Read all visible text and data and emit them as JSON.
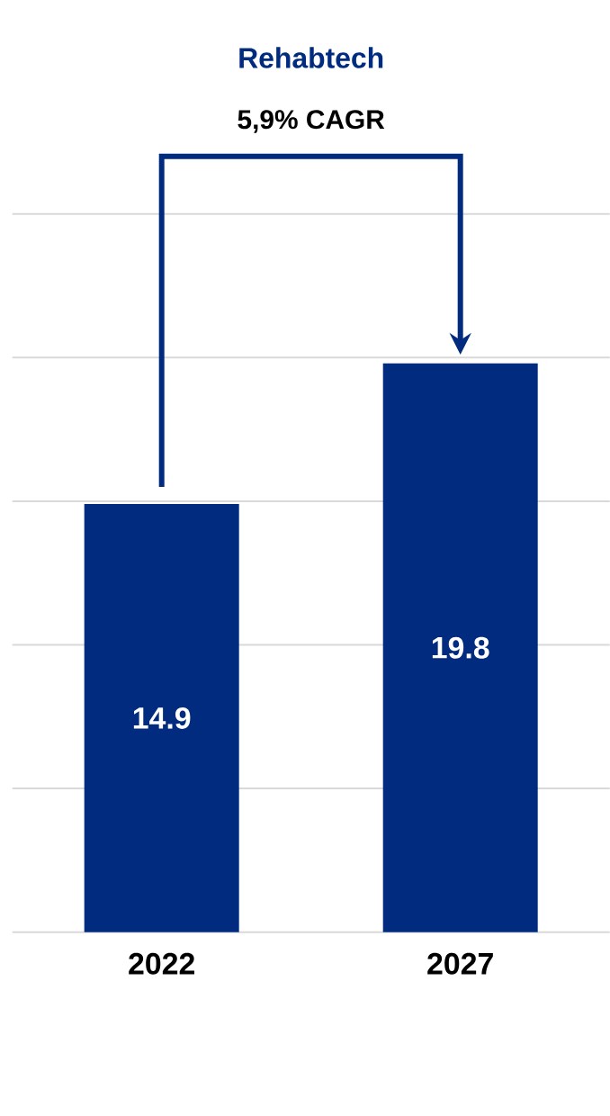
{
  "chart_data": {
    "type": "bar",
    "title": "Rehabtech",
    "categories": [
      "2022",
      "2027"
    ],
    "values": [
      14.9,
      19.8
    ],
    "color": "#002b7f",
    "ylim": [
      0,
      25
    ],
    "yticks": [
      {
        "value": 0,
        "label": null
      },
      {
        "value": 5,
        "label": null
      },
      {
        "value": 10,
        "label": null
      },
      {
        "value": 15,
        "label": null
      },
      {
        "value": 20,
        "label": null
      },
      {
        "value": 25,
        "label": null
      }
    ],
    "tick_labels": "x",
    "grid": "y",
    "data_labels": true,
    "annotations": [
      "5,9% CAGR"
    ]
  }
}
